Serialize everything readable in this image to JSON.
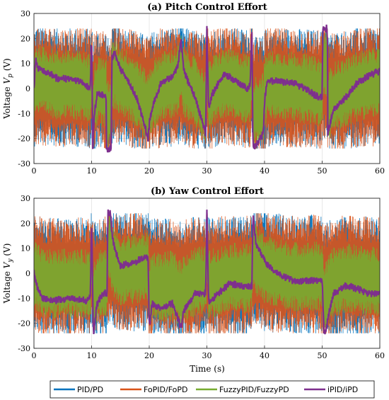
{
  "chart_data": [
    {
      "type": "line",
      "title": "(a) Pitch Control Effort",
      "xlabel": "",
      "ylabel": "Voltage V_p (V)",
      "ylabel_parts": {
        "pre": "Voltage ",
        "var": "V",
        "sub": "p",
        "post": " (V)"
      },
      "xlim": [
        0,
        60
      ],
      "ylim": [
        -30,
        30
      ],
      "xticks": [
        "0",
        "10",
        "20",
        "30",
        "40",
        "50",
        "60"
      ],
      "yticks": [
        "-30",
        "-20",
        "-10",
        "0",
        "10",
        "20",
        "30"
      ],
      "grid": true,
      "series": [
        {
          "name": "PID/PD",
          "color": "#0072BD",
          "amplitude": 24
        },
        {
          "name": "FoPID/FoPD",
          "color": "#D95319",
          "amplitude": 24
        },
        {
          "name": "FuzzyPID/FuzzyPD",
          "color": "#77AC30",
          "amplitude": 14
        },
        {
          "name": "iPID/iPD",
          "color": "#7E2F8E",
          "x": [
            0,
            0.3,
            0.8,
            2,
            4,
            6,
            8,
            9.8,
            10,
            10.2,
            10.5,
            11,
            12.5,
            12.6,
            13.4,
            13.5,
            14,
            15,
            17,
            18,
            19.8,
            20,
            20.5,
            22,
            24,
            25,
            25.5,
            26,
            28,
            29.8,
            30,
            30.3,
            31,
            33,
            35,
            37,
            37.5,
            37.8,
            38,
            39.8,
            40,
            40.5,
            42,
            45,
            47,
            49,
            50,
            50.1,
            50.9,
            51,
            52,
            54,
            56,
            58,
            60
          ],
          "values": [
            0,
            12,
            8,
            7,
            4,
            4,
            3,
            0,
            24,
            -24,
            -10,
            -2,
            -3,
            -24,
            -24,
            12,
            14,
            8,
            0,
            -5,
            -20,
            -14,
            -8,
            2,
            5,
            9,
            20,
            7,
            -4,
            -18,
            24,
            -8,
            -2,
            6,
            3,
            0,
            1,
            24,
            -24,
            -18,
            -5,
            3,
            3,
            2,
            0,
            -3,
            -4,
            24,
            24,
            -18,
            -8,
            -4,
            2,
            5,
            7
          ]
        }
      ]
    },
    {
      "type": "line",
      "title": "(b) Yaw Control Effort",
      "xlabel": "Time (s)",
      "ylabel": "Voltage V_y (V)",
      "ylabel_parts": {
        "pre": "Voltage ",
        "var": "V",
        "sub": "y",
        "post": " (V)"
      },
      "xlim": [
        0,
        60
      ],
      "ylim": [
        -30,
        30
      ],
      "xticks": [
        "0",
        "10",
        "20",
        "30",
        "40",
        "50",
        "60"
      ],
      "yticks": [
        "-30",
        "-20",
        "-10",
        "0",
        "10",
        "20",
        "30"
      ],
      "grid": true,
      "series": [
        {
          "name": "PID/PD",
          "color": "#0072BD",
          "amplitude": 24
        },
        {
          "name": "FoPID/FoPD",
          "color": "#D95319",
          "amplitude": 24
        },
        {
          "name": "FuzzyPID/FuzzyPD",
          "color": "#77AC30",
          "amplitude": 14
        },
        {
          "name": "iPID/iPD",
          "color": "#7E2F8E",
          "x": [
            0,
            0.5,
            1.5,
            3,
            6,
            9,
            9.8,
            10,
            10.3,
            11,
            12,
            12.7,
            12.8,
            13.3,
            13.5,
            14,
            15,
            17,
            19,
            19.8,
            20,
            20.5,
            22,
            24,
            25,
            25.5,
            26,
            28,
            29.8,
            30,
            30.3,
            31,
            34,
            36,
            37.8,
            38,
            38.5,
            40,
            42,
            45,
            48,
            50,
            50.3,
            50.6,
            51,
            52,
            54,
            56,
            58,
            60
          ],
          "values": [
            0,
            -5,
            -10,
            -11,
            -10,
            -11,
            -9,
            24,
            -24,
            -12,
            -8,
            -8,
            24,
            24,
            16,
            10,
            3,
            4,
            6,
            6,
            -22,
            -12,
            -14,
            -12,
            -18,
            -22,
            -15,
            -8,
            -8,
            24,
            -12,
            -10,
            -4,
            -5,
            -5,
            24,
            12,
            5,
            0,
            -3,
            -3,
            -3,
            -24,
            -24,
            -18,
            -8,
            -5,
            -6,
            -8,
            -8
          ]
        }
      ]
    }
  ],
  "legend": {
    "placement": "bottom",
    "entries": [
      {
        "label": "PID/PD",
        "color": "#0072BD"
      },
      {
        "label": "FoPID/FoPD",
        "color": "#D95319"
      },
      {
        "label": "FuzzyPID/FuzzyPD",
        "color": "#77AC30"
      },
      {
        "label": "iPID/iPD",
        "color": "#7E2F8E"
      }
    ]
  }
}
